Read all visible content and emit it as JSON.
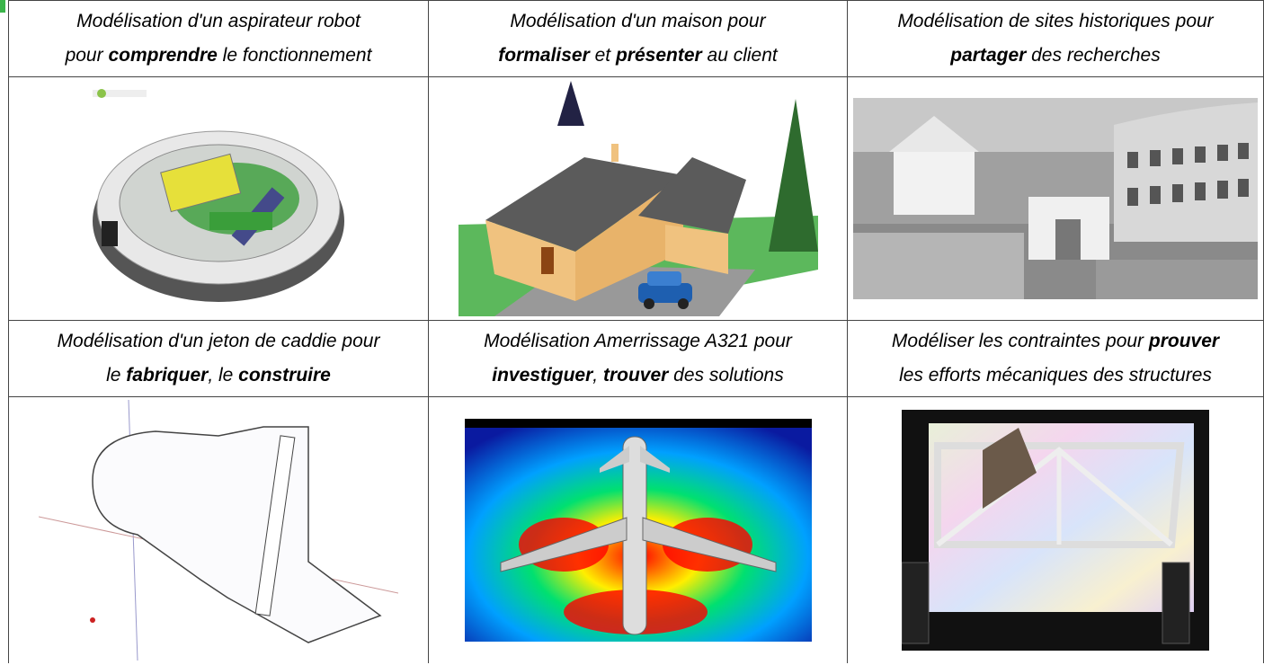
{
  "table": {
    "rows": [
      {
        "cells": [
          {
            "lines": [
              [
                {
                  "text": "Modélisation d'un aspirateur robot"
                }
              ],
              [
                {
                  "text": "pour "
                },
                {
                  "text": "comprendre",
                  "bold": true
                },
                {
                  "text": " le fonctionnement"
                }
              ]
            ]
          },
          {
            "lines": [
              [
                {
                  "text": "Modélisation d'un maison pour"
                }
              ],
              [
                {
                  "text": "formaliser",
                  "bold": true
                },
                {
                  "text": " et "
                },
                {
                  "text": "présenter",
                  "bold": true
                },
                {
                  "text": " au client"
                }
              ]
            ]
          },
          {
            "lines": [
              [
                {
                  "text": "Modélisation de sites historiques pour"
                }
              ],
              [
                {
                  "text": "partager",
                  "bold": true
                },
                {
                  "text": " des recherches"
                }
              ]
            ]
          }
        ]
      },
      {
        "cells": [
          {
            "lines": [
              [
                {
                  "text": "Modélisation d'un jeton de caddie pour"
                }
              ],
              [
                {
                  "text": "le "
                },
                {
                  "text": "fabriquer",
                  "bold": true
                },
                {
                  "text": ", le "
                },
                {
                  "text": "construire",
                  "bold": true
                }
              ]
            ]
          },
          {
            "lines": [
              [
                {
                  "text": "Modélisation Amerrissage A321 pour"
                }
              ],
              [
                {
                  "text": "investiguer",
                  "bold": true
                },
                {
                  "text": ", "
                },
                {
                  "text": "trouver",
                  "bold": true
                },
                {
                  "text": " des solutions"
                }
              ]
            ]
          },
          {
            "lines": [
              [
                {
                  "text": "Modéliser les contraintes pour "
                },
                {
                  "text": "prouver",
                  "bold": true
                }
              ],
              [
                {
                  "text": "les efforts mécaniques des structures"
                }
              ]
            ]
          }
        ]
      }
    ]
  }
}
